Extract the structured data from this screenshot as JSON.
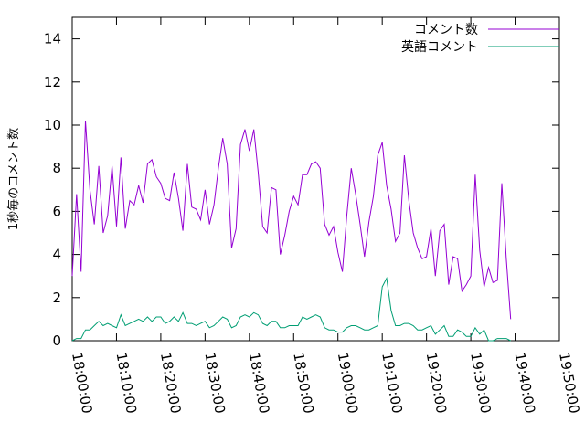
{
  "chart_data": {
    "type": "line",
    "title": "",
    "xlabel": "",
    "ylabel": "1秒毎のコメント数",
    "x_unit": "HH:MM:SS",
    "xlim": [
      "18:00:00",
      "19:50:00"
    ],
    "ylim": [
      0,
      15
    ],
    "x_ticks": [
      "18:00:00",
      "18:10:00",
      "18:20:00",
      "18:30:00",
      "18:40:00",
      "18:50:00",
      "19:00:00",
      "19:10:00",
      "19:20:00",
      "19:30:00",
      "19:40:00",
      "19:50:00"
    ],
    "y_ticks": [
      "0",
      "2",
      "4",
      "6",
      "8",
      "10",
      "12",
      "14"
    ],
    "legend_position": "top-right",
    "grid": false,
    "series": [
      {
        "name": "コメント数",
        "color": "#9400d3",
        "points": [
          [
            "18:00:00",
            3.0
          ],
          [
            "18:01:00",
            6.8
          ],
          [
            "18:02:00",
            3.2
          ],
          [
            "18:03:00",
            10.2
          ],
          [
            "18:04:00",
            7.0
          ],
          [
            "18:05:00",
            5.4
          ],
          [
            "18:06:00",
            8.1
          ],
          [
            "18:07:00",
            5.0
          ],
          [
            "18:08:00",
            5.8
          ],
          [
            "18:09:00",
            8.1
          ],
          [
            "18:10:00",
            5.3
          ],
          [
            "18:11:00",
            8.5
          ],
          [
            "18:12:00",
            5.2
          ],
          [
            "18:13:00",
            6.5
          ],
          [
            "18:14:00",
            6.3
          ],
          [
            "18:15:00",
            7.2
          ],
          [
            "18:16:00",
            6.4
          ],
          [
            "18:17:00",
            8.2
          ],
          [
            "18:18:00",
            8.4
          ],
          [
            "18:19:00",
            7.6
          ],
          [
            "18:20:00",
            7.3
          ],
          [
            "18:21:00",
            6.6
          ],
          [
            "18:22:00",
            6.5
          ],
          [
            "18:23:00",
            7.8
          ],
          [
            "18:24:00",
            6.6
          ],
          [
            "18:25:00",
            5.1
          ],
          [
            "18:26:00",
            8.2
          ],
          [
            "18:27:00",
            6.2
          ],
          [
            "18:28:00",
            6.1
          ],
          [
            "18:29:00",
            5.6
          ],
          [
            "18:30:00",
            7.0
          ],
          [
            "18:31:00",
            5.4
          ],
          [
            "18:32:00",
            6.3
          ],
          [
            "18:33:00",
            8.0
          ],
          [
            "18:34:00",
            9.4
          ],
          [
            "18:35:00",
            8.2
          ],
          [
            "18:36:00",
            4.3
          ],
          [
            "18:37:00",
            5.2
          ],
          [
            "18:38:00",
            9.1
          ],
          [
            "18:39:00",
            9.8
          ],
          [
            "18:40:00",
            8.8
          ],
          [
            "18:41:00",
            9.8
          ],
          [
            "18:42:00",
            7.8
          ],
          [
            "18:43:00",
            5.3
          ],
          [
            "18:44:00",
            5.0
          ],
          [
            "18:45:00",
            7.1
          ],
          [
            "18:46:00",
            7.0
          ],
          [
            "18:47:00",
            4.0
          ],
          [
            "18:48:00",
            4.9
          ],
          [
            "18:49:00",
            6.0
          ],
          [
            "18:50:00",
            6.7
          ],
          [
            "18:51:00",
            6.3
          ],
          [
            "18:52:00",
            7.7
          ],
          [
            "18:53:00",
            7.7
          ],
          [
            "18:54:00",
            8.2
          ],
          [
            "18:55:00",
            8.3
          ],
          [
            "18:56:00",
            8.0
          ],
          [
            "18:57:00",
            5.4
          ],
          [
            "18:58:00",
            4.9
          ],
          [
            "18:59:00",
            5.3
          ],
          [
            "19:00:00",
            4.1
          ],
          [
            "19:01:00",
            3.2
          ],
          [
            "19:02:00",
            5.8
          ],
          [
            "19:03:00",
            8.0
          ],
          [
            "19:04:00",
            6.8
          ],
          [
            "19:05:00",
            5.4
          ],
          [
            "19:06:00",
            3.9
          ],
          [
            "19:07:00",
            5.5
          ],
          [
            "19:08:00",
            6.7
          ],
          [
            "19:09:00",
            8.6
          ],
          [
            "19:10:00",
            9.2
          ],
          [
            "19:11:00",
            7.2
          ],
          [
            "19:12:00",
            6.1
          ],
          [
            "19:13:00",
            4.6
          ],
          [
            "19:14:00",
            5.0
          ],
          [
            "19:15:00",
            8.6
          ],
          [
            "19:16:00",
            6.5
          ],
          [
            "19:17:00",
            5.0
          ],
          [
            "19:18:00",
            4.3
          ],
          [
            "19:19:00",
            3.8
          ],
          [
            "19:20:00",
            3.9
          ],
          [
            "19:21:00",
            5.2
          ],
          [
            "19:22:00",
            3.0
          ],
          [
            "19:23:00",
            5.1
          ],
          [
            "19:24:00",
            5.4
          ],
          [
            "19:25:00",
            2.6
          ],
          [
            "19:26:00",
            3.9
          ],
          [
            "19:27:00",
            3.8
          ],
          [
            "19:28:00",
            2.3
          ],
          [
            "19:29:00",
            2.6
          ],
          [
            "19:30:00",
            3.0
          ],
          [
            "19:31:00",
            7.7
          ],
          [
            "19:32:00",
            4.2
          ],
          [
            "19:33:00",
            2.5
          ],
          [
            "19:34:00",
            3.4
          ],
          [
            "19:35:00",
            2.7
          ],
          [
            "19:36:00",
            2.8
          ],
          [
            "19:37:00",
            7.3
          ],
          [
            "19:38:00",
            3.8
          ],
          [
            "19:39:00",
            1.0
          ]
        ]
      },
      {
        "name": "英語コメント",
        "color": "#009e73",
        "points": [
          [
            "18:00:00",
            0.0
          ],
          [
            "18:01:00",
            0.1
          ],
          [
            "18:02:00",
            0.1
          ],
          [
            "18:03:00",
            0.5
          ],
          [
            "18:04:00",
            0.5
          ],
          [
            "18:05:00",
            0.7
          ],
          [
            "18:06:00",
            0.9
          ],
          [
            "18:07:00",
            0.7
          ],
          [
            "18:08:00",
            0.8
          ],
          [
            "18:09:00",
            0.7
          ],
          [
            "18:10:00",
            0.6
          ],
          [
            "18:11:00",
            1.2
          ],
          [
            "18:12:00",
            0.7
          ],
          [
            "18:13:00",
            0.8
          ],
          [
            "18:14:00",
            0.9
          ],
          [
            "18:15:00",
            1.0
          ],
          [
            "18:16:00",
            0.9
          ],
          [
            "18:17:00",
            1.1
          ],
          [
            "18:18:00",
            0.9
          ],
          [
            "18:19:00",
            1.1
          ],
          [
            "18:20:00",
            1.1
          ],
          [
            "18:21:00",
            0.8
          ],
          [
            "18:22:00",
            0.9
          ],
          [
            "18:23:00",
            1.1
          ],
          [
            "18:24:00",
            0.9
          ],
          [
            "18:25:00",
            1.3
          ],
          [
            "18:26:00",
            0.8
          ],
          [
            "18:27:00",
            0.8
          ],
          [
            "18:28:00",
            0.7
          ],
          [
            "18:29:00",
            0.8
          ],
          [
            "18:30:00",
            0.9
          ],
          [
            "18:31:00",
            0.6
          ],
          [
            "18:32:00",
            0.7
          ],
          [
            "18:33:00",
            0.9
          ],
          [
            "18:34:00",
            1.1
          ],
          [
            "18:35:00",
            1.0
          ],
          [
            "18:36:00",
            0.6
          ],
          [
            "18:37:00",
            0.7
          ],
          [
            "18:38:00",
            1.1
          ],
          [
            "18:39:00",
            1.2
          ],
          [
            "18:40:00",
            1.1
          ],
          [
            "18:41:00",
            1.3
          ],
          [
            "18:42:00",
            1.2
          ],
          [
            "18:43:00",
            0.8
          ],
          [
            "18:44:00",
            0.7
          ],
          [
            "18:45:00",
            0.9
          ],
          [
            "18:46:00",
            0.9
          ],
          [
            "18:47:00",
            0.6
          ],
          [
            "18:48:00",
            0.6
          ],
          [
            "18:49:00",
            0.7
          ],
          [
            "18:50:00",
            0.7
          ],
          [
            "18:51:00",
            0.7
          ],
          [
            "18:52:00",
            1.1
          ],
          [
            "18:53:00",
            1.0
          ],
          [
            "18:54:00",
            1.1
          ],
          [
            "18:55:00",
            1.2
          ],
          [
            "18:56:00",
            1.1
          ],
          [
            "18:57:00",
            0.6
          ],
          [
            "18:58:00",
            0.5
          ],
          [
            "18:59:00",
            0.5
          ],
          [
            "19:00:00",
            0.4
          ],
          [
            "19:01:00",
            0.4
          ],
          [
            "19:02:00",
            0.6
          ],
          [
            "19:03:00",
            0.7
          ],
          [
            "19:04:00",
            0.7
          ],
          [
            "19:05:00",
            0.6
          ],
          [
            "19:06:00",
            0.5
          ],
          [
            "19:07:00",
            0.5
          ],
          [
            "19:08:00",
            0.6
          ],
          [
            "19:09:00",
            0.7
          ],
          [
            "19:10:00",
            2.5
          ],
          [
            "19:11:00",
            2.9
          ],
          [
            "19:12:00",
            1.4
          ],
          [
            "19:13:00",
            0.7
          ],
          [
            "19:14:00",
            0.7
          ],
          [
            "19:15:00",
            0.8
          ],
          [
            "19:16:00",
            0.8
          ],
          [
            "19:17:00",
            0.7
          ],
          [
            "19:18:00",
            0.5
          ],
          [
            "19:19:00",
            0.5
          ],
          [
            "19:20:00",
            0.6
          ],
          [
            "19:21:00",
            0.7
          ],
          [
            "19:22:00",
            0.3
          ],
          [
            "19:23:00",
            0.5
          ],
          [
            "19:24:00",
            0.7
          ],
          [
            "19:25:00",
            0.2
          ],
          [
            "19:26:00",
            0.2
          ],
          [
            "19:27:00",
            0.5
          ],
          [
            "19:28:00",
            0.4
          ],
          [
            "19:29:00",
            0.2
          ],
          [
            "19:30:00",
            0.2
          ],
          [
            "19:31:00",
            0.6
          ],
          [
            "19:32:00",
            0.3
          ],
          [
            "19:33:00",
            0.5
          ],
          [
            "19:34:00",
            0.0
          ],
          [
            "19:35:00",
            0.0
          ],
          [
            "19:36:00",
            0.1
          ],
          [
            "19:37:00",
            0.1
          ],
          [
            "19:38:00",
            0.1
          ],
          [
            "19:39:00",
            0.0
          ]
        ]
      }
    ]
  }
}
